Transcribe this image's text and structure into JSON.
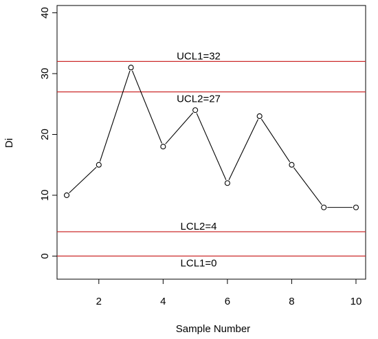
{
  "chart_data": {
    "type": "line",
    "title": "",
    "xlabel": "Sample Number",
    "ylabel": "Di",
    "xlim": [
      0.7,
      10.3
    ],
    "ylim": [
      -3.8,
      41.2
    ],
    "x_ticks": [
      2,
      4,
      6,
      8,
      10
    ],
    "y_ticks": [
      0,
      10,
      20,
      30,
      40
    ],
    "grid": false,
    "series": [
      {
        "x": [
          1,
          2,
          3,
          4,
          5,
          6,
          7,
          8,
          9,
          10
        ],
        "values": [
          10,
          15,
          31,
          18,
          24,
          12,
          23,
          15,
          8,
          8
        ],
        "marker": "open-circle",
        "color": "#000000"
      }
    ],
    "control_lines": [
      {
        "label": "UCL1=32",
        "value": 32,
        "color": "#cc2a2a",
        "label_position": "above"
      },
      {
        "label": "UCL2=27",
        "value": 27,
        "color": "#cc2a2a",
        "label_position": "below"
      },
      {
        "label": "LCL2=4",
        "value": 4,
        "color": "#cc2a2a",
        "label_position": "above"
      },
      {
        "label": "LCL1=0",
        "value": 0,
        "color": "#cc2a2a",
        "label_position": "below"
      }
    ]
  }
}
